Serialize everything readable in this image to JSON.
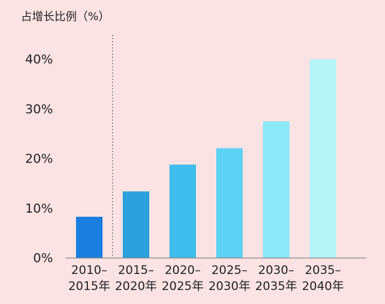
{
  "chart_data": {
    "type": "bar",
    "title": "占增长比例（%）",
    "categories": [
      [
        "2010–",
        "2015年"
      ],
      [
        "2015–",
        "2020年"
      ],
      [
        "2020–",
        "2025年"
      ],
      [
        "2025–",
        "2030年"
      ],
      [
        "2030–",
        "2035年"
      ],
      [
        "2035–",
        "2040年"
      ]
    ],
    "values": [
      8.3,
      13.4,
      18.8,
      22.1,
      27.5,
      40.0
    ],
    "ylim": [
      0,
      40
    ],
    "yticks": [
      "0%",
      "10%",
      "20%",
      "30%",
      "40%"
    ],
    "ytick_values": [
      0,
      10,
      20,
      30,
      40
    ],
    "bar_colors": [
      "#1a7fe0",
      "#2aa0dc",
      "#3fbdec",
      "#5ed2f4",
      "#8be9f8",
      "#b5f3f7"
    ],
    "divider_after_index": 0,
    "grid": false,
    "legend": "none"
  }
}
